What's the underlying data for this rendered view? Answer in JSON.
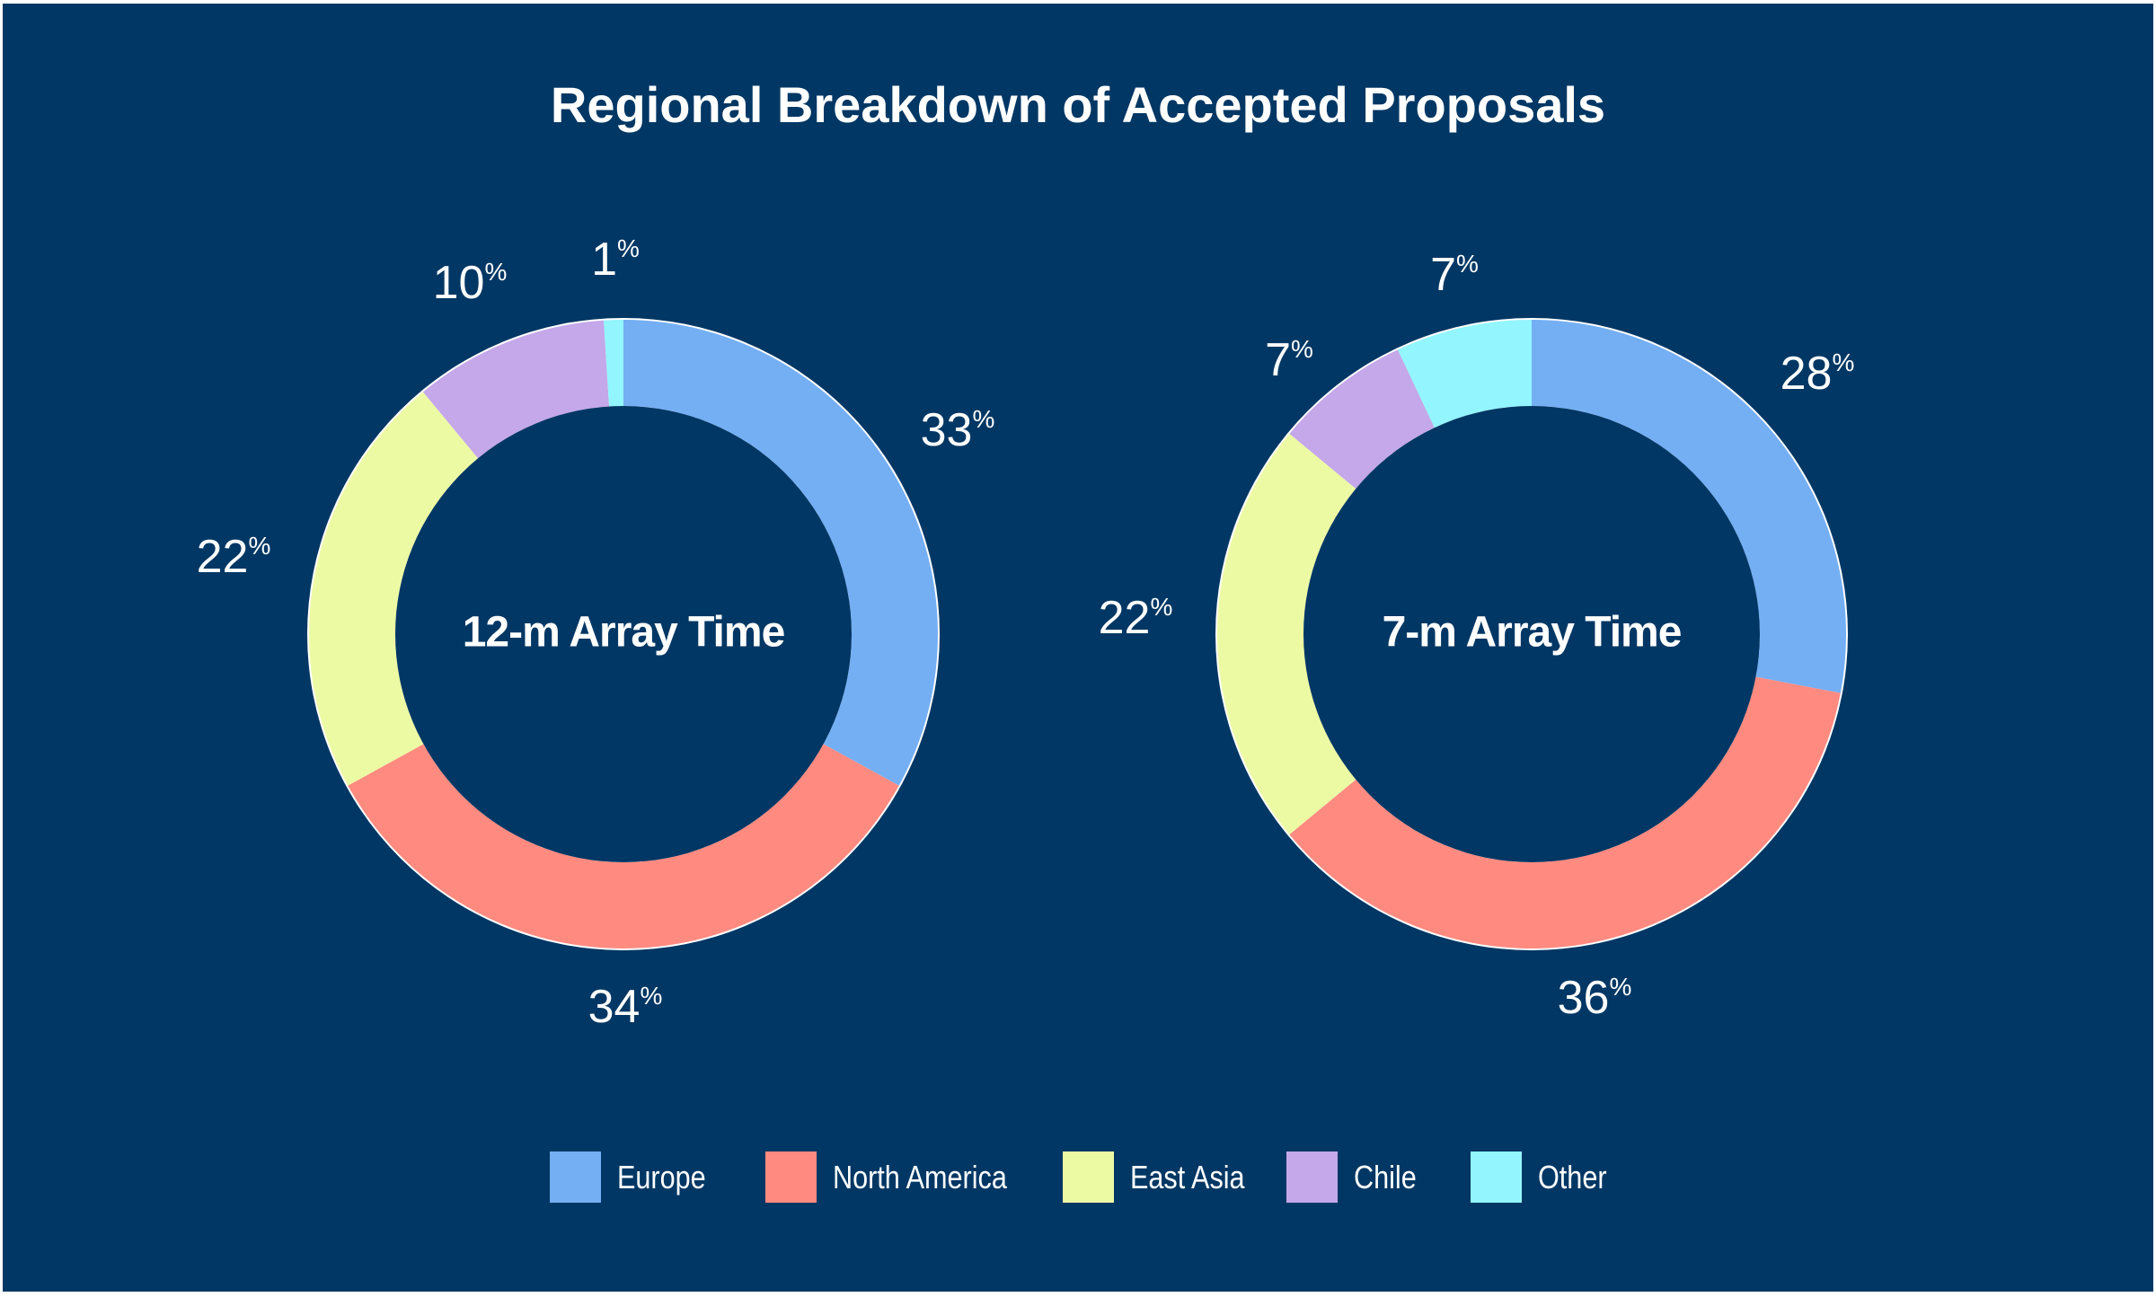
{
  "chart_data": [
    {
      "type": "pie",
      "title": "Regional Breakdown of Accepted Proposals",
      "center_label": "12-m Array Time",
      "categories": [
        "Europe",
        "North America",
        "East Asia",
        "Chile",
        "Other"
      ],
      "values": [
        33,
        34,
        22,
        10,
        1
      ],
      "unit": "%"
    },
    {
      "type": "pie",
      "center_label": "7-m Array Time",
      "categories": [
        "Europe",
        "North America",
        "East Asia",
        "Chile",
        "Other"
      ],
      "values": [
        28,
        36,
        22,
        7,
        7
      ],
      "unit": "%"
    }
  ],
  "title": "Regional Breakdown of Accepted Proposals",
  "legend": [
    {
      "label": "Europe",
      "color": "#74aff4"
    },
    {
      "label": "North America",
      "color": "#ff8a80"
    },
    {
      "label": "East Asia",
      "color": "#edfaa4"
    },
    {
      "label": "Chile",
      "color": "#c4a8e9"
    },
    {
      "label": "Other",
      "color": "#93f5fd"
    }
  ],
  "colors": {
    "background": "#013764",
    "ring_border": "#ffffff"
  },
  "legend_placement": "bottom"
}
